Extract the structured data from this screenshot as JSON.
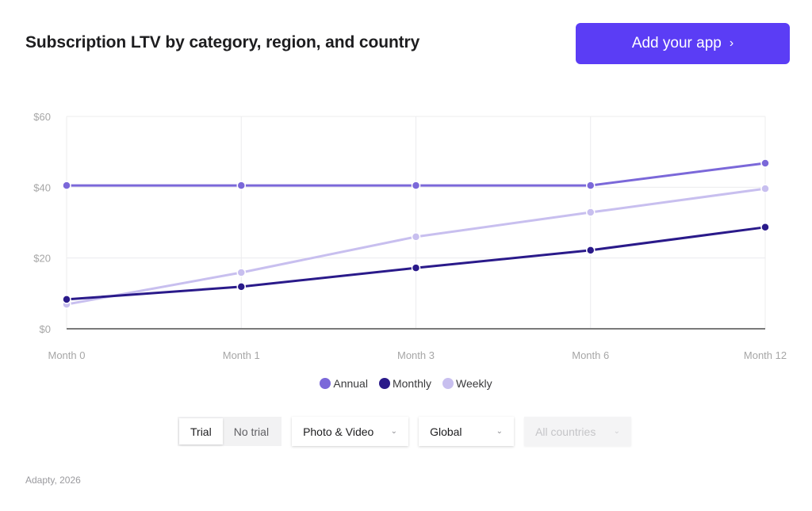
{
  "header": {
    "title": "Subscription LTV by category, region, and country",
    "cta_label": "Add your app",
    "cta_icon": "chevron-right-icon",
    "cta_color": "#5b3df5"
  },
  "chart_data": {
    "type": "line",
    "title": "Subscription LTV by category, region, and country",
    "xlabel": "",
    "ylabel": "",
    "categories": [
      "Month 0",
      "Month 1",
      "Month 3",
      "Month 6",
      "Month 12"
    ],
    "y_ticks": [
      "$0",
      "$20",
      "$40",
      "$60"
    ],
    "ylim": [
      0,
      60
    ],
    "grid": true,
    "legend_position": "bottom",
    "series": [
      {
        "name": "Annual",
        "color": "#7b68d9",
        "values": [
          40.5,
          40.5,
          40.5,
          40.5,
          46.8
        ]
      },
      {
        "name": "Monthly",
        "color": "#2a1a8a",
        "values": [
          8.3,
          11.9,
          17.2,
          22.2,
          28.7
        ]
      },
      {
        "name": "Weekly",
        "color": "#c8bfef",
        "values": [
          6.9,
          15.9,
          26.0,
          32.9,
          39.6
        ]
      }
    ]
  },
  "legend": [
    {
      "label": "Annual",
      "color": "#7b68d9"
    },
    {
      "label": "Monthly",
      "color": "#2a1a8a"
    },
    {
      "label": "Weekly",
      "color": "#c8bfef"
    }
  ],
  "controls": {
    "trial_toggle": {
      "options": [
        "Trial",
        "No trial"
      ],
      "selected": "Trial"
    },
    "category_select": {
      "value": "Photo & Video"
    },
    "region_select": {
      "value": "Global"
    },
    "country_select": {
      "value": "All countries",
      "disabled": true
    }
  },
  "footer": {
    "text": "Adapty, 2026"
  }
}
